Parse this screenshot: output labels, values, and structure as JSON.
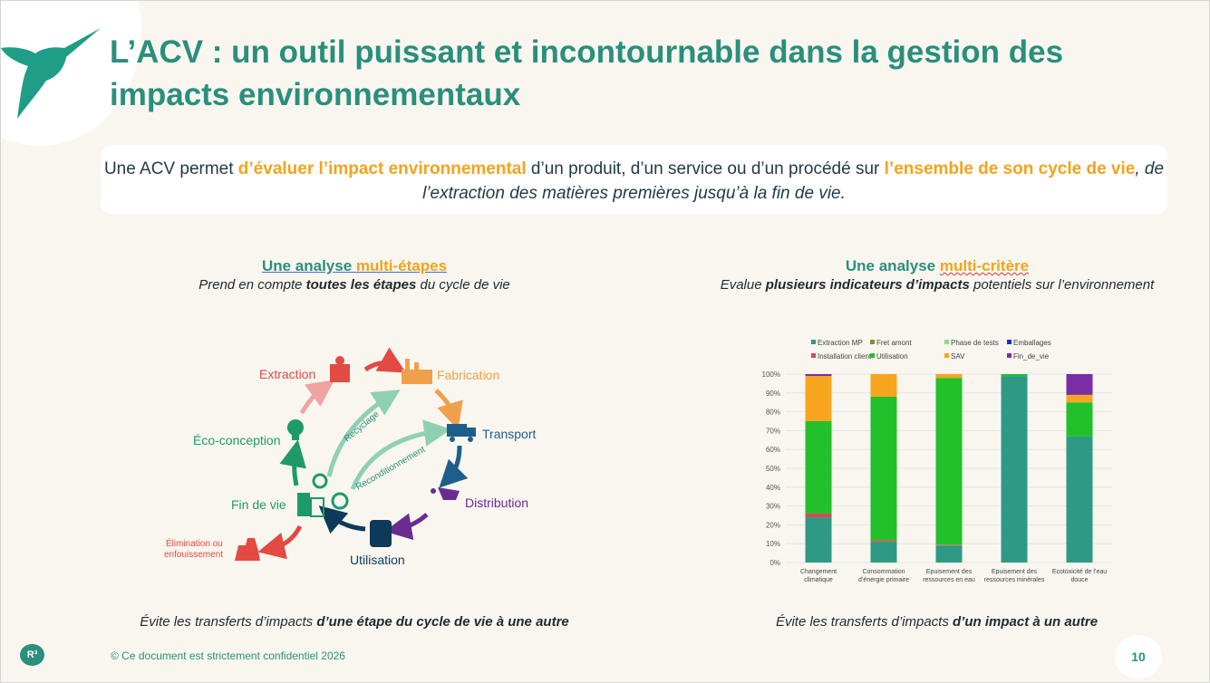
{
  "title": "L’ACV : un outil puissant et incontournable dans la gestion des impacts environnementaux",
  "intro": {
    "p1": "Une ACV permet ",
    "h1": "d’évaluer l’impact environnemental",
    "p2": " d’un produit, d’un service ou d’un procédé sur ",
    "h2": "l’ensemble de son cycle de vie",
    "p3": ", de l’extraction des matières premières jusqu’à la fin de vie."
  },
  "left": {
    "title_a": "Une analyse ",
    "title_b": "multi-étapes",
    "sub_a": "Prend en compte ",
    "sub_b": "toutes les étapes",
    "sub_c": " du cycle de vie",
    "footer_a": "Évite les transferts d’impacts ",
    "footer_b": "d’une étape du cycle de vie à une autre"
  },
  "right": {
    "title_a": "Une analyse ",
    "title_b": "multi-critère",
    "sub_a": "Evalue ",
    "sub_b": "plusieurs indicateurs d’impacts",
    "sub_c": " potentiels sur l’environnement",
    "footer_a": "Évite les transferts d’impacts ",
    "footer_b": "d’un impact à un autre"
  },
  "cycle": {
    "extraction": "Extraction",
    "fabrication": "Fabrication",
    "transport": "Transport",
    "distribution": "Distribution",
    "utilisation": "Utilisation",
    "fin_de_vie": "Fin de vie",
    "eco_conception": "Éco-conception",
    "elimination_1": "Élimination ou",
    "elimination_2": "enfouissement",
    "recyclage": "Recyclage",
    "reconditionnement": "Reconditionnement"
  },
  "chart_data": {
    "type": "bar",
    "stacked": true,
    "categories": [
      [
        "Changement",
        "climatique"
      ],
      [
        "Consommation",
        "d’énergie primaire"
      ],
      [
        "Epuisement des",
        "ressources en eau"
      ],
      [
        "Epuisement des",
        "ressources minérales"
      ],
      [
        "Ecotoxicité de l’eau",
        "douce"
      ]
    ],
    "yticks": [
      "0%",
      "10%",
      "20%",
      "30%",
      "40%",
      "50%",
      "60%",
      "70%",
      "80%",
      "90%",
      "100%"
    ],
    "ylim": [
      0,
      100
    ],
    "legend_position": "top",
    "series": [
      {
        "name": "Extraction MP",
        "color": "#2e9a85",
        "values": [
          24,
          11,
          9,
          99,
          67
        ]
      },
      {
        "name": "Installation client",
        "color": "#e0455a",
        "values": [
          2,
          0.5,
          0.3,
          0,
          0
        ]
      },
      {
        "name": "Fret amont",
        "color": "#8a8a3a",
        "values": [
          0,
          0.5,
          0.2,
          0,
          0
        ]
      },
      {
        "name": "Utilisation",
        "color": "#22c02a",
        "values": [
          49,
          76,
          88.5,
          1,
          18
        ]
      },
      {
        "name": "Phase de tests",
        "color": "#8fd98a",
        "values": [
          0,
          0,
          0,
          0,
          0
        ]
      },
      {
        "name": "SAV",
        "color": "#f7a51f",
        "values": [
          24,
          12,
          2,
          0,
          4
        ]
      },
      {
        "name": "Emballages",
        "color": "#1a2fc4",
        "values": [
          0,
          0,
          0,
          0,
          0
        ]
      },
      {
        "name": "Fin_de_vie",
        "color": "#7a2ea3",
        "values": [
          1,
          0,
          0,
          0,
          11
        ]
      }
    ]
  },
  "footer": {
    "logo": "R³",
    "copyright": "© Ce document est strictement confidentiel 2026",
    "page": "10"
  }
}
